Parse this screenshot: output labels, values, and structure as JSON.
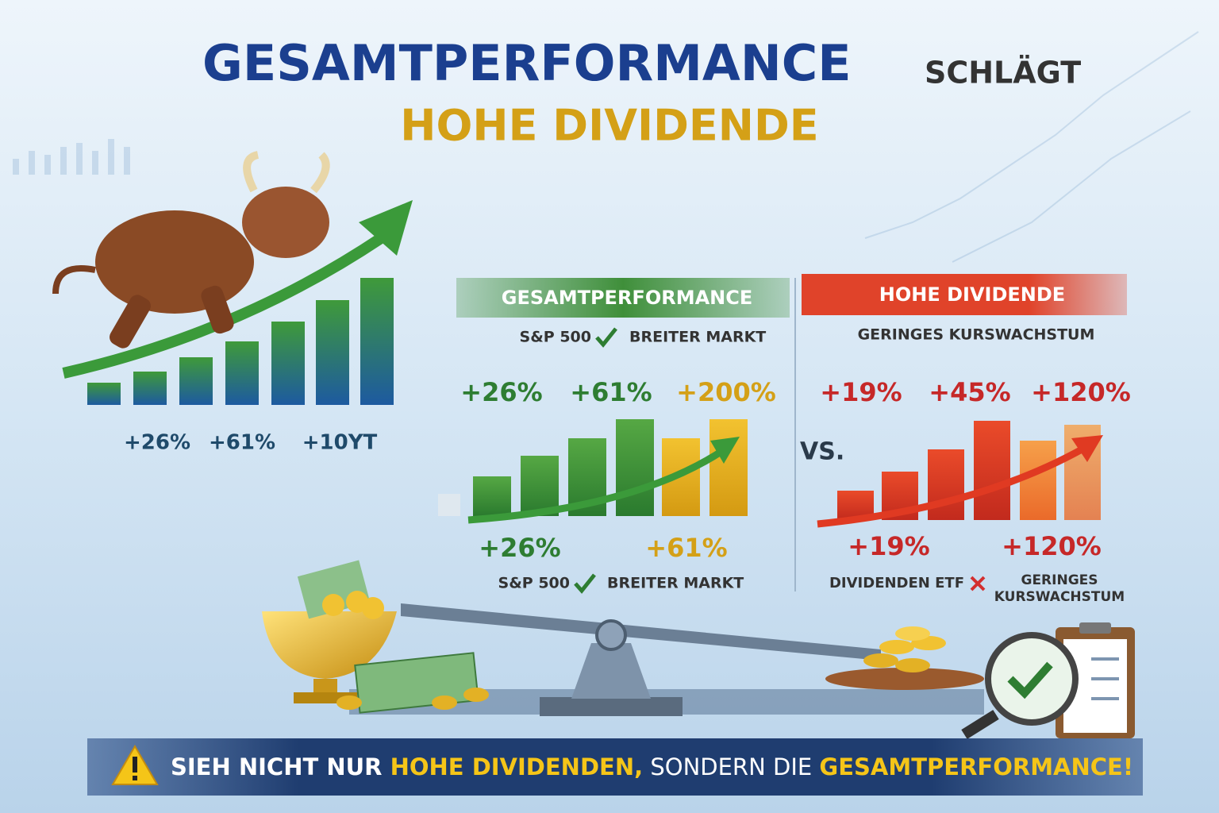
{
  "header": {
    "title": "GESAMTPERFORMANCE",
    "title_suffix": "SCHLÄGT",
    "subtitle": "HOHE DIVIDENDE"
  },
  "left_labels": [
    "+26%",
    "+61%",
    "+10YT"
  ],
  "panels": [
    {
      "heading": "GESAMTPERFORMANCE",
      "sub_left": "S&P 500",
      "sub_right": "BREITER MARKT",
      "top_values": [
        "+26%",
        "+61%",
        "+200%"
      ],
      "bottom_values": [
        "+26%",
        "+61%"
      ],
      "caption_left": "S&P 500",
      "caption_right": [
        "BREITER MARKT"
      ]
    },
    {
      "heading": "HOHE DIVIDENDE",
      "sub_left": "GERINGES KURSWACHSTUM",
      "top_values": [
        "+19%",
        "+45%",
        "+120%"
      ],
      "bottom_values": [
        "+19%",
        "+120%"
      ],
      "caption_left": "DIVIDENDEN ETF",
      "caption_right": [
        "GERINGES",
        "KURSWACHSTUM"
      ]
    }
  ],
  "versus": "VS.",
  "footer": [
    "SIEH NICHT NUR ",
    "HOHE DIVIDENDEN,",
    " SONDERN DIE ",
    "GESAMTPERFORMANCE!"
  ]
}
